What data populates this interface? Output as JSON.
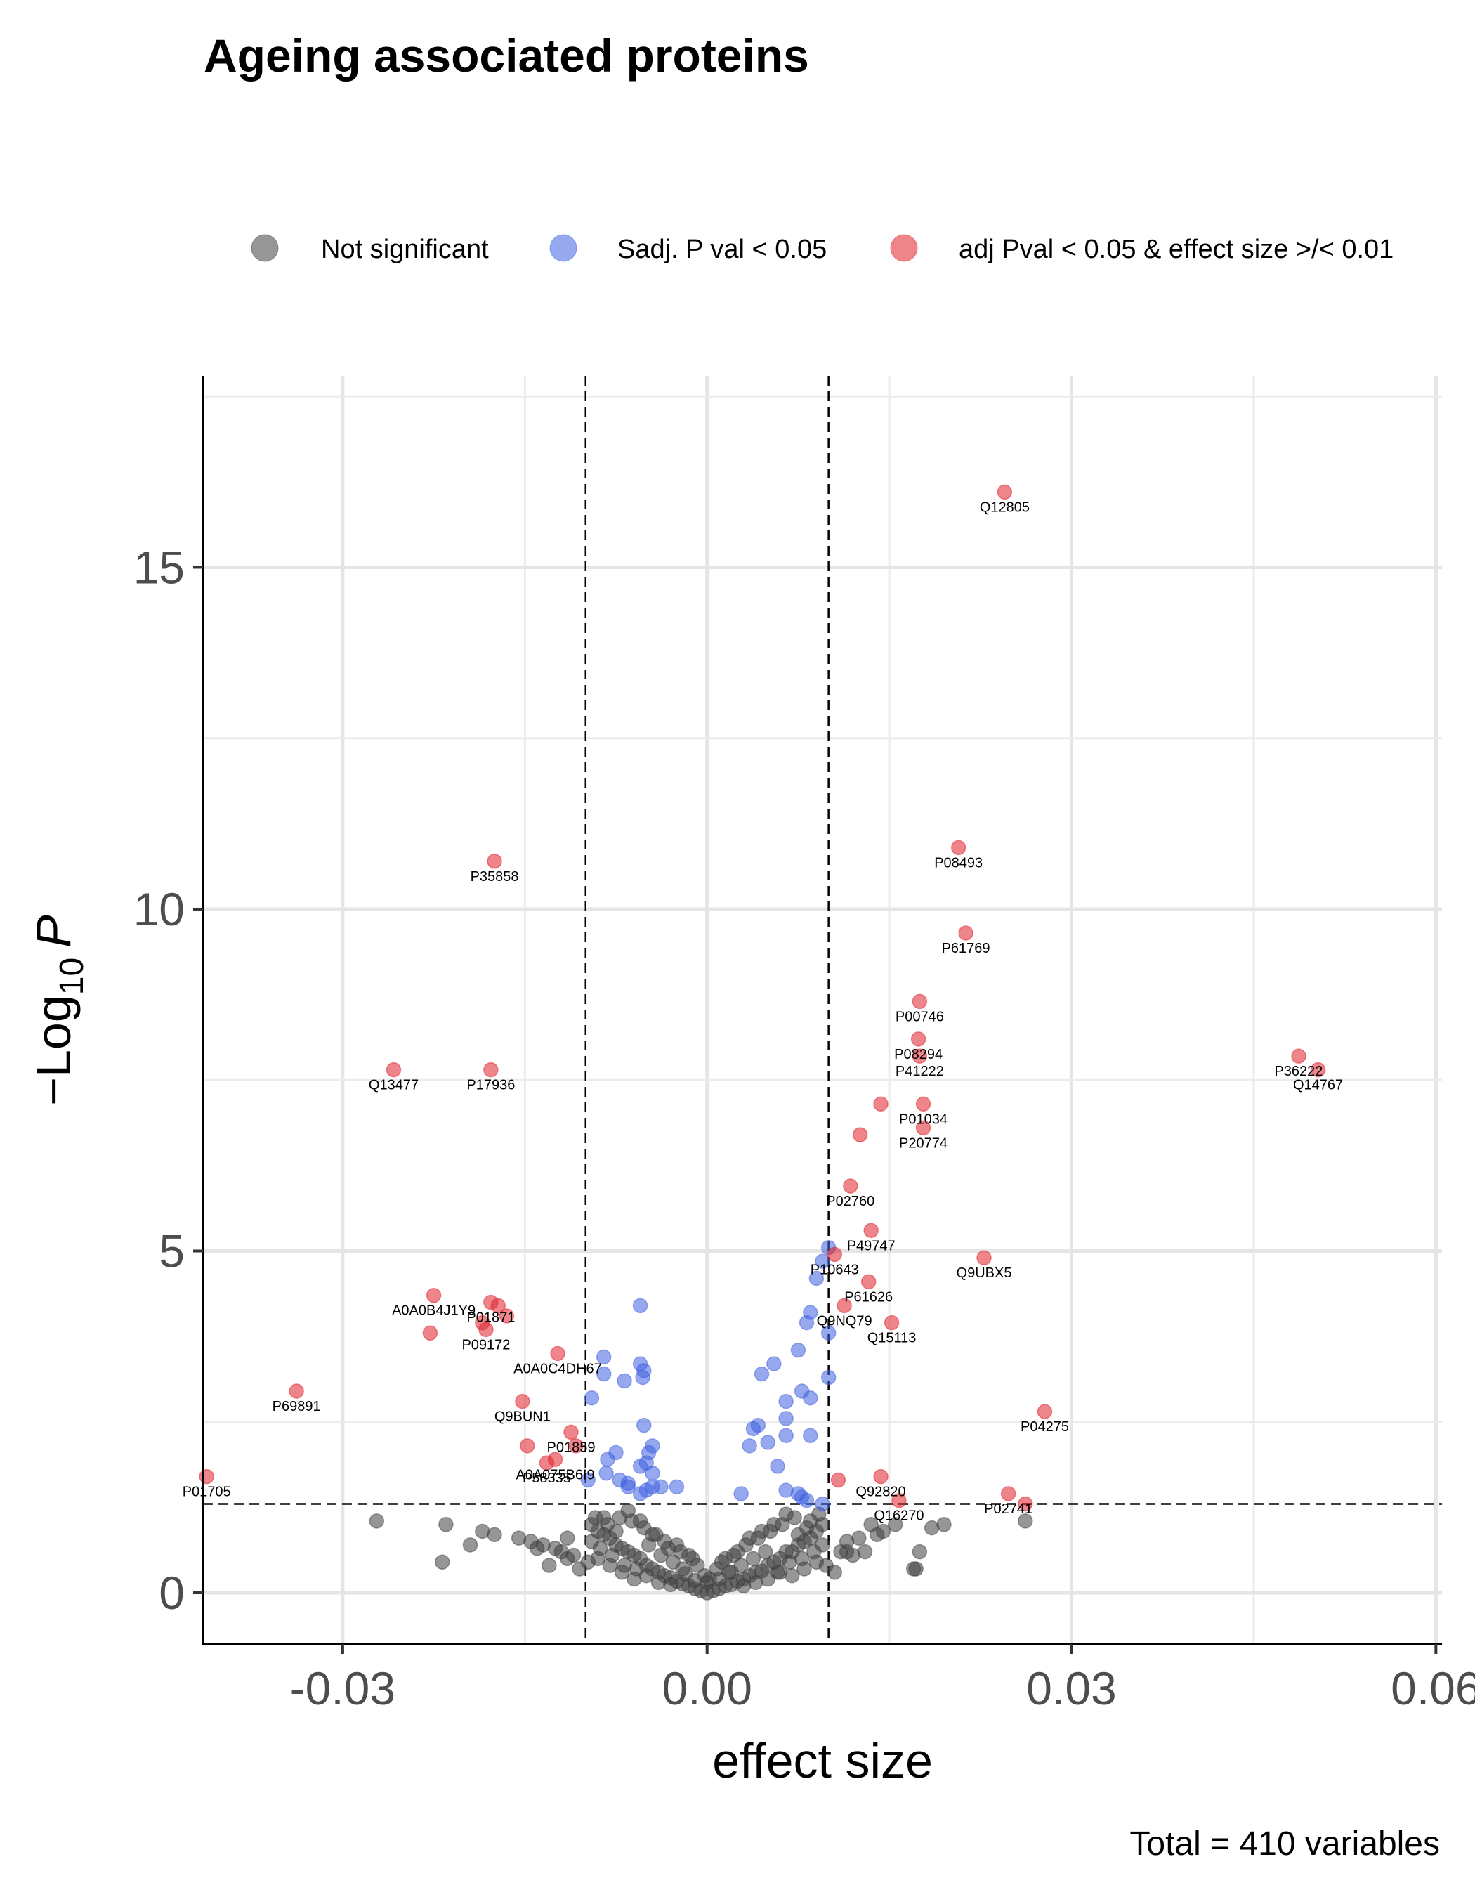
{
  "chart_data": {
    "type": "scatter",
    "title": "Ageing associated proteins",
    "xlabel": "effect size",
    "ylabel_main": "−Log",
    "ylabel_sub": "10",
    "ylabel_var": "P",
    "caption": "Total = 410 variables",
    "xlim": [
      -0.0415,
      0.0605
    ],
    "ylim": [
      -0.75,
      17.8
    ],
    "x_ticks": [
      -0.03,
      0.0,
      0.03,
      0.06
    ],
    "x_tick_labels": [
      "-0.03",
      "0.00",
      "0.03",
      "0.06"
    ],
    "y_ticks": [
      0,
      5,
      10,
      15
    ],
    "y_tick_labels": [
      "0",
      "5",
      "10",
      "15"
    ],
    "vlines": [
      -0.01,
      0.01
    ],
    "hline": 1.3,
    "grid": true,
    "legend_position": "top",
    "legend": [
      {
        "label": "Not significant",
        "color": "#404040"
      },
      {
        "label": "Sadj. P val < 0.05",
        "color": "#4060e0"
      },
      {
        "label": "adj Pval < 0.05 & effect size >/< 0.01",
        "color": "#e0202a"
      }
    ],
    "series": [
      {
        "name": "Not significant",
        "color": "#404040",
        "points": [
          [
            0.0,
            0.0
          ],
          [
            0.0005,
            0.03
          ],
          [
            -0.0005,
            0.03
          ],
          [
            0.001,
            0.06
          ],
          [
            -0.001,
            0.06
          ],
          [
            0.0015,
            0.1
          ],
          [
            -0.0015,
            0.1
          ],
          [
            0.002,
            0.12
          ],
          [
            -0.002,
            0.13
          ],
          [
            0.0025,
            0.17
          ],
          [
            -0.0025,
            0.17
          ],
          [
            0.003,
            0.2
          ],
          [
            -0.003,
            0.22
          ],
          [
            0.0035,
            0.25
          ],
          [
            -0.0035,
            0.25
          ],
          [
            0.004,
            0.3
          ],
          [
            -0.004,
            0.3
          ],
          [
            0.0045,
            0.32
          ],
          [
            -0.0045,
            0.35
          ],
          [
            0.005,
            0.4
          ],
          [
            -0.005,
            0.4
          ],
          [
            0.0055,
            0.45
          ],
          [
            -0.0055,
            0.5
          ],
          [
            0.006,
            0.5
          ],
          [
            -0.006,
            0.55
          ],
          [
            0.0065,
            0.6
          ],
          [
            -0.0065,
            0.6
          ],
          [
            0.007,
            0.6
          ],
          [
            -0.007,
            0.65
          ],
          [
            0.0075,
            0.7
          ],
          [
            -0.0075,
            0.7
          ],
          [
            0.008,
            0.75
          ],
          [
            -0.008,
            0.8
          ],
          [
            0.0085,
            0.8
          ],
          [
            -0.0085,
            0.85
          ],
          [
            0.009,
            0.9
          ],
          [
            -0.009,
            0.9
          ],
          [
            0.0095,
            1.0
          ],
          [
            -0.0095,
            1.0
          ],
          [
            0.0002,
            0.2
          ],
          [
            -0.0002,
            0.25
          ],
          [
            0.0008,
            0.35
          ],
          [
            -0.0008,
            0.4
          ],
          [
            0.0012,
            0.45
          ],
          [
            -0.0012,
            0.5
          ],
          [
            0.0018,
            0.3
          ],
          [
            -0.0018,
            0.28
          ],
          [
            0.0022,
            0.55
          ],
          [
            -0.0022,
            0.6
          ],
          [
            0.0028,
            0.4
          ],
          [
            -0.0028,
            0.45
          ],
          [
            0.0032,
            0.7
          ],
          [
            -0.0032,
            0.65
          ],
          [
            0.0038,
            0.5
          ],
          [
            -0.0038,
            0.55
          ],
          [
            0.0042,
            0.8
          ],
          [
            -0.0042,
            0.85
          ],
          [
            0.0048,
            0.6
          ],
          [
            -0.0048,
            0.7
          ],
          [
            0.0052,
            0.9
          ],
          [
            -0.0052,
            0.95
          ],
          [
            0.0058,
            0.3
          ],
          [
            -0.0058,
            0.35
          ],
          [
            0.0062,
            1.0
          ],
          [
            -0.0062,
            1.05
          ],
          [
            0.0068,
            0.45
          ],
          [
            -0.0068,
            0.4
          ],
          [
            0.0072,
            1.1
          ],
          [
            -0.0072,
            1.1
          ],
          [
            0.0078,
            0.5
          ],
          [
            -0.0078,
            0.55
          ],
          [
            0.0082,
            0.95
          ],
          [
            -0.0082,
            1.0
          ],
          [
            0.0088,
            0.6
          ],
          [
            -0.0088,
            0.65
          ],
          [
            0.0092,
            1.15
          ],
          [
            -0.0092,
            1.1
          ],
          [
            0.0098,
            0.4
          ],
          [
            -0.0098,
            0.45
          ],
          [
            0.0,
            0.15
          ],
          [
            0.001,
            0.2
          ],
          [
            -0.001,
            0.18
          ],
          [
            0.002,
            0.3
          ],
          [
            -0.002,
            0.35
          ],
          [
            0.003,
            0.1
          ],
          [
            -0.003,
            0.12
          ],
          [
            0.004,
            0.15
          ],
          [
            -0.004,
            0.15
          ],
          [
            0.005,
            0.2
          ],
          [
            -0.005,
            0.25
          ],
          [
            0.006,
            0.3
          ],
          [
            -0.006,
            0.2
          ],
          [
            0.007,
            0.25
          ],
          [
            -0.007,
            0.3
          ],
          [
            0.008,
            0.35
          ],
          [
            -0.008,
            0.4
          ],
          [
            0.009,
            0.45
          ],
          [
            -0.009,
            0.5
          ],
          [
            0.0015,
            0.5
          ],
          [
            -0.0015,
            0.55
          ],
          [
            0.0025,
            0.6
          ],
          [
            -0.0025,
            0.7
          ],
          [
            0.0035,
            0.8
          ],
          [
            -0.0035,
            0.75
          ],
          [
            0.0045,
            0.9
          ],
          [
            -0.0045,
            0.85
          ],
          [
            0.0055,
            1.0
          ],
          [
            -0.0055,
            1.05
          ],
          [
            0.0065,
            1.15
          ],
          [
            -0.0065,
            1.2
          ],
          [
            0.0075,
            0.85
          ],
          [
            -0.0075,
            0.9
          ],
          [
            0.0085,
            1.05
          ],
          [
            -0.0085,
            1.1
          ],
          [
            0.0095,
            0.7
          ],
          [
            -0.0095,
            0.75
          ],
          [
            0.0105,
            0.3
          ],
          [
            -0.0105,
            0.35
          ],
          [
            0.011,
            0.6
          ],
          [
            -0.011,
            0.55
          ],
          [
            0.0115,
            0.75
          ],
          [
            -0.0115,
            0.8
          ],
          [
            0.012,
            0.55
          ],
          [
            -0.012,
            0.6
          ],
          [
            0.0125,
            0.8
          ],
          [
            -0.0125,
            0.65
          ],
          [
            0.013,
            0.6
          ],
          [
            -0.013,
            0.4
          ],
          [
            0.0135,
            1.0
          ],
          [
            -0.0135,
            0.7
          ],
          [
            0.014,
            0.85
          ],
          [
            -0.014,
            0.65
          ],
          [
            0.0145,
            0.9
          ],
          [
            -0.0145,
            0.75
          ],
          [
            0.0155,
            1.0
          ],
          [
            -0.0155,
            0.8
          ],
          [
            0.017,
            0.35
          ],
          [
            0.0172,
            0.35
          ],
          [
            0.0175,
            0.6
          ],
          [
            -0.0175,
            0.85
          ],
          [
            0.0185,
            0.95
          ],
          [
            -0.0185,
            0.9
          ],
          [
            0.0195,
            1.0
          ],
          [
            -0.0195,
            0.7
          ],
          [
            0.0262,
            1.05
          ],
          [
            -0.0218,
            0.45
          ],
          [
            -0.0215,
            1.0
          ],
          [
            -0.0272,
            1.05
          ],
          [
            -0.0115,
            0.5
          ],
          [
            0.0115,
            0.6
          ]
        ]
      },
      {
        "name": "Sadj. P val < 0.05",
        "color": "#4060e0",
        "points": [
          [
            -0.0055,
            4.2
          ],
          [
            -0.0085,
            3.45
          ],
          [
            -0.0085,
            3.2
          ],
          [
            -0.0055,
            3.35
          ],
          [
            -0.0053,
            3.15
          ],
          [
            -0.0052,
            3.25
          ],
          [
            -0.0068,
            3.1
          ],
          [
            -0.0095,
            2.85
          ],
          [
            -0.0052,
            2.45
          ],
          [
            -0.0045,
            2.15
          ],
          [
            -0.0048,
            2.05
          ],
          [
            -0.005,
            1.9
          ],
          [
            -0.0055,
            1.85
          ],
          [
            -0.0075,
            2.05
          ],
          [
            -0.0082,
            1.95
          ],
          [
            -0.0065,
            1.6
          ],
          [
            -0.0072,
            1.65
          ],
          [
            -0.0098,
            1.65
          ],
          [
            -0.0083,
            1.75
          ],
          [
            -0.0045,
            1.55
          ],
          [
            -0.005,
            1.5
          ],
          [
            -0.0055,
            1.45
          ],
          [
            -0.0038,
            1.55
          ],
          [
            -0.0025,
            1.55
          ],
          [
            -0.0065,
            1.55
          ],
          [
            -0.0045,
            1.75
          ],
          [
            0.01,
            5.05
          ],
          [
            0.0095,
            4.85
          ],
          [
            0.009,
            4.6
          ],
          [
            0.0085,
            4.1
          ],
          [
            0.0082,
            3.95
          ],
          [
            0.01,
            3.8
          ],
          [
            0.0075,
            3.55
          ],
          [
            0.01,
            3.15
          ],
          [
            0.0055,
            3.35
          ],
          [
            0.0045,
            3.2
          ],
          [
            0.0078,
            2.95
          ],
          [
            0.0085,
            2.85
          ],
          [
            0.0065,
            2.8
          ],
          [
            0.0065,
            2.55
          ],
          [
            0.0042,
            2.45
          ],
          [
            0.0038,
            2.4
          ],
          [
            0.005,
            2.2
          ],
          [
            0.0085,
            2.3
          ],
          [
            0.0065,
            2.3
          ],
          [
            0.0035,
            2.15
          ],
          [
            0.0058,
            1.85
          ],
          [
            0.0028,
            1.45
          ],
          [
            0.0065,
            1.5
          ],
          [
            0.0075,
            1.45
          ],
          [
            0.0078,
            1.4
          ],
          [
            0.0082,
            1.35
          ],
          [
            0.0095,
            1.3
          ]
        ]
      },
      {
        "name": "adj Pval < 0.05 & effect size >/< 0.01",
        "color": "#e0202a",
        "points": [
          [
            0.0245,
            16.1
          ],
          [
            -0.0175,
            10.7
          ],
          [
            0.0207,
            10.9
          ],
          [
            0.0213,
            9.65
          ],
          [
            0.0175,
            8.65
          ],
          [
            0.0174,
            8.1
          ],
          [
            0.0175,
            7.85
          ],
          [
            0.0487,
            7.85
          ],
          [
            0.0503,
            7.65
          ],
          [
            -0.0258,
            7.65
          ],
          [
            -0.0178,
            7.65
          ],
          [
            0.0143,
            7.15
          ],
          [
            0.0178,
            7.15
          ],
          [
            0.0126,
            6.7
          ],
          [
            0.0178,
            6.8
          ],
          [
            0.0118,
            5.95
          ],
          [
            0.0135,
            5.3
          ],
          [
            0.0105,
            4.95
          ],
          [
            0.0228,
            4.9
          ],
          [
            0.0133,
            4.55
          ],
          [
            0.0113,
            4.2
          ],
          [
            0.0152,
            3.95
          ],
          [
            -0.0225,
            4.35
          ],
          [
            -0.0178,
            4.25
          ],
          [
            -0.0172,
            4.2
          ],
          [
            -0.0165,
            4.05
          ],
          [
            -0.0185,
            3.95
          ],
          [
            -0.0182,
            3.85
          ],
          [
            -0.0228,
            3.8
          ],
          [
            -0.0123,
            3.5
          ],
          [
            -0.0338,
            2.95
          ],
          [
            -0.0152,
            2.8
          ],
          [
            0.0278,
            2.65
          ],
          [
            -0.0112,
            2.35
          ],
          [
            -0.0148,
            2.15
          ],
          [
            -0.0108,
            2.15
          ],
          [
            -0.0125,
            1.95
          ],
          [
            -0.0132,
            1.9
          ],
          [
            -0.0412,
            1.7
          ],
          [
            0.0108,
            1.65
          ],
          [
            0.0143,
            1.7
          ],
          [
            0.0158,
            1.35
          ],
          [
            0.0248,
            1.45
          ],
          [
            0.0262,
            1.3
          ]
        ]
      }
    ],
    "labels": [
      {
        "text": "Q12805",
        "x": 0.0245,
        "y": 16.1
      },
      {
        "text": "P35858",
        "x": -0.0175,
        "y": 10.7
      },
      {
        "text": "P08493",
        "x": 0.0207,
        "y": 10.9
      },
      {
        "text": "P61769",
        "x": 0.0213,
        "y": 9.65
      },
      {
        "text": "P00746",
        "x": 0.0175,
        "y": 8.65
      },
      {
        "text": "P08294",
        "x": 0.0174,
        "y": 8.1
      },
      {
        "text": "P41222",
        "x": 0.0175,
        "y": 7.85
      },
      {
        "text": "P36222",
        "x": 0.0487,
        "y": 7.85
      },
      {
        "text": "Q14767",
        "x": 0.0503,
        "y": 7.65
      },
      {
        "text": "Q13477",
        "x": -0.0258,
        "y": 7.65
      },
      {
        "text": "P17936",
        "x": -0.0178,
        "y": 7.65
      },
      {
        "text": "P01034",
        "x": 0.0178,
        "y": 7.15
      },
      {
        "text": "P20774",
        "x": 0.0178,
        "y": 6.8
      },
      {
        "text": "P02760",
        "x": 0.0118,
        "y": 5.95
      },
      {
        "text": "P49747",
        "x": 0.0135,
        "y": 5.3
      },
      {
        "text": "P10643",
        "x": 0.0105,
        "y": 4.95
      },
      {
        "text": "Q9UBX5",
        "x": 0.0228,
        "y": 4.9
      },
      {
        "text": "P61626",
        "x": 0.0133,
        "y": 4.55
      },
      {
        "text": "Q9NQ79",
        "x": 0.0113,
        "y": 4.2
      },
      {
        "text": "Q15113",
        "x": 0.0152,
        "y": 3.95
      },
      {
        "text": "A0A0B4J1Y9",
        "x": -0.0225,
        "y": 4.35
      },
      {
        "text": "P01871",
        "x": -0.0178,
        "y": 4.25
      },
      {
        "text": "P09172",
        "x": -0.0182,
        "y": 3.85
      },
      {
        "text": "A0A0C4DH67",
        "x": -0.0123,
        "y": 3.5
      },
      {
        "text": "P69891",
        "x": -0.0338,
        "y": 2.95
      },
      {
        "text": "Q9BUN1",
        "x": -0.0152,
        "y": 2.8
      },
      {
        "text": "P04275",
        "x": 0.0278,
        "y": 2.65
      },
      {
        "text": "P01859",
        "x": -0.0112,
        "y": 2.35
      },
      {
        "text": "P58335",
        "x": -0.0132,
        "y": 1.9
      },
      {
        "text": "A0A075B6I9",
        "x": -0.0125,
        "y": 1.95
      },
      {
        "text": "P01705",
        "x": -0.0412,
        "y": 1.7
      },
      {
        "text": "Q92820",
        "x": 0.0143,
        "y": 1.7
      },
      {
        "text": "Q16270",
        "x": 0.0158,
        "y": 1.35
      },
      {
        "text": "P02741",
        "x": 0.0248,
        "y": 1.45
      }
    ]
  }
}
